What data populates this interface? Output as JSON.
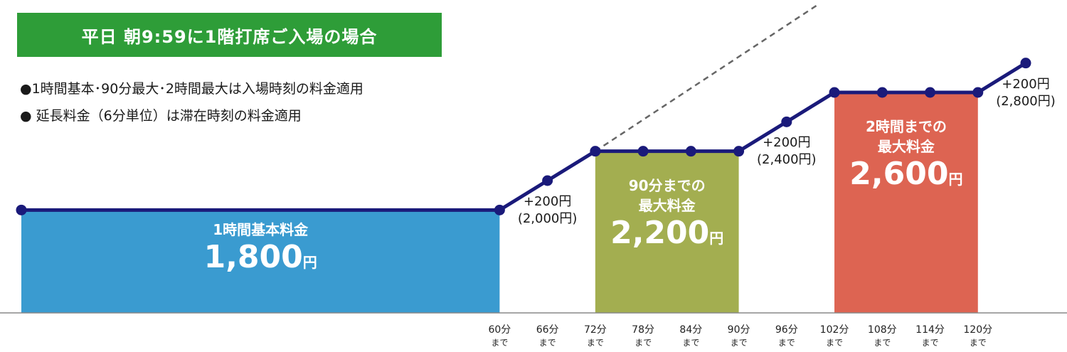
{
  "title": "平日 朝9:59に1階打席ご入場の場合",
  "notes": [
    "●1時間基本･90分最大･2時間最大は入場時刻の料金適用",
    "● 延長料金（6分単位）は滞在時刻の料金適用"
  ],
  "zones": [
    {
      "label": "1時間基本料金",
      "label2": "",
      "value": "1,800",
      "unit": "円"
    },
    {
      "label": "90分までの",
      "label2": "最大料金",
      "value": "2,200",
      "unit": "円"
    },
    {
      "label": "2時間までの",
      "label2": "最大料金",
      "value": "2,600",
      "unit": "円"
    }
  ],
  "increments": [
    {
      "line1": "+200円",
      "line2": "(2,000円)"
    },
    {
      "line1": "+200円",
      "line2": "(2,400円)"
    },
    {
      "line1": "+200円",
      "line2": "(2,800円)"
    }
  ],
  "colors": {
    "title_bg": "#2e9d38",
    "line": "#1a1a7a",
    "zone_basic": "#3a9bd0",
    "zone_90": "#a3ae50",
    "zone_120": "#dd6452",
    "dashed": "#666666",
    "axis": "#888888"
  },
  "chart_data": {
    "type": "line",
    "x_labels": [
      {
        "top": "60分",
        "bottom": "まで"
      },
      {
        "top": "66分",
        "bottom": "まで"
      },
      {
        "top": "72分",
        "bottom": "まで"
      },
      {
        "top": "78分",
        "bottom": "まで"
      },
      {
        "top": "84分",
        "bottom": "まで"
      },
      {
        "top": "90分",
        "bottom": "まで"
      },
      {
        "top": "96分",
        "bottom": "まで"
      },
      {
        "top": "102分",
        "bottom": "まで"
      },
      {
        "top": "108分",
        "bottom": "まで"
      },
      {
        "top": "114分",
        "bottom": "まで"
      },
      {
        "top": "120分",
        "bottom": "まで"
      }
    ],
    "points": [
      {
        "x": 0,
        "y": 1800
      },
      {
        "x": 60,
        "y": 1800
      },
      {
        "x": 66,
        "y": 2000
      },
      {
        "x": 72,
        "y": 2200
      },
      {
        "x": 78,
        "y": 2200
      },
      {
        "x": 84,
        "y": 2200
      },
      {
        "x": 90,
        "y": 2200
      },
      {
        "x": 96,
        "y": 2400
      },
      {
        "x": 102,
        "y": 2600
      },
      {
        "x": 108,
        "y": 2600
      },
      {
        "x": 114,
        "y": 2600
      },
      {
        "x": 120,
        "y": 2600
      },
      {
        "x": 126,
        "y": 2800
      }
    ],
    "dashed_continuation": [
      {
        "x": 72,
        "y": 2200
      },
      {
        "x": 100,
        "y": 3200
      }
    ],
    "zones_range": [
      {
        "x0": 0,
        "x1": 60,
        "y": 1800
      },
      {
        "x0": 72,
        "x1": 90,
        "y": 2200
      },
      {
        "x0": 102,
        "x1": 120,
        "y": 2600
      }
    ],
    "ylim": [
      1100,
      3200
    ],
    "xlim": [
      0,
      126
    ]
  }
}
